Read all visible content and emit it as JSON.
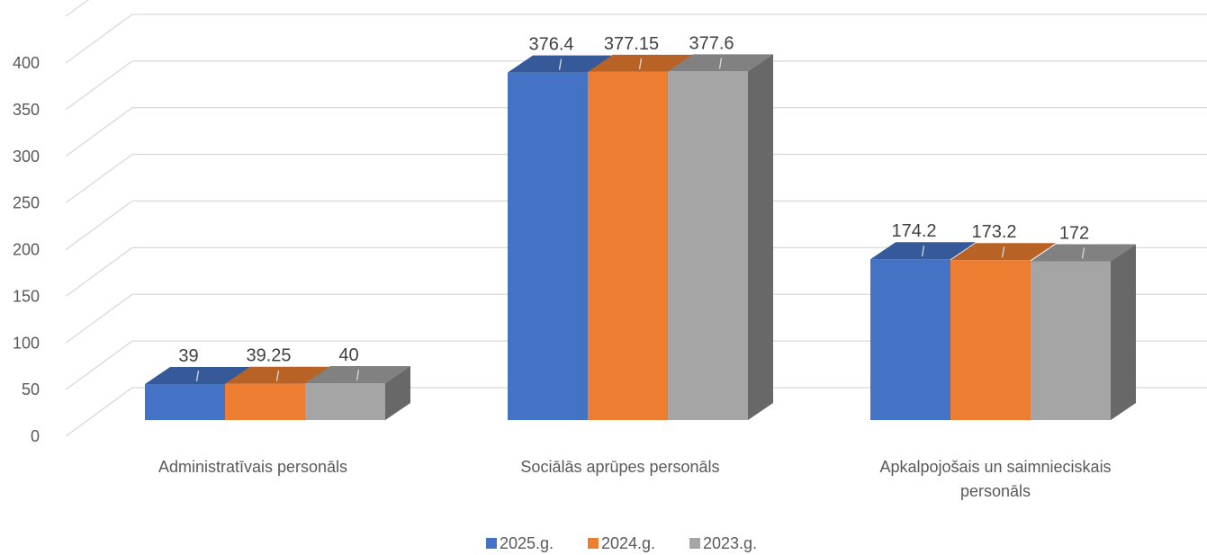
{
  "chart_data": {
    "type": "bar",
    "three_d": true,
    "title": "",
    "xlabel": "",
    "ylabel": "",
    "ylim": [
      0,
      400
    ],
    "yticks": [
      0,
      50,
      100,
      150,
      200,
      250,
      300,
      350,
      400
    ],
    "grid": true,
    "legend_position": "bottom",
    "categories": [
      [
        "Administratīvais personāls"
      ],
      [
        "Sociālās aprūpes personāls"
      ],
      [
        "Apkalpojošais un saimnieciskais",
        "personāls"
      ]
    ],
    "series": [
      {
        "name": "2025.g.",
        "color": "#4472C4",
        "values": [
          39,
          376.4,
          174.2
        ]
      },
      {
        "name": "2024.g.",
        "color": "#ED7D31",
        "values": [
          39.25,
          377.15,
          173.2
        ]
      },
      {
        "name": "2023.g.",
        "color": "#A5A5A5",
        "values": [
          40,
          377.6,
          172
        ]
      }
    ]
  }
}
